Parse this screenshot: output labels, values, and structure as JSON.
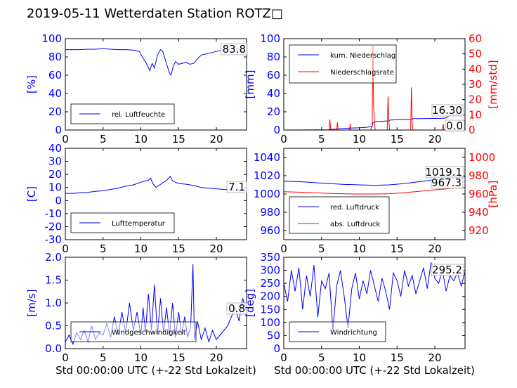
{
  "title": "2019-05-11 Wetterdaten Station ROTZ□",
  "colors": {
    "primary": "#0000ff",
    "secondary": "#ff0000",
    "text": "#000000"
  },
  "chart_data": [
    {
      "id": "humidity",
      "type": "line",
      "ylabel": "[%]",
      "xlim": [
        0,
        24
      ],
      "ylim": [
        0,
        100
      ],
      "xticks": [
        0,
        5,
        10,
        15,
        20
      ],
      "yticks": [
        0,
        20,
        40,
        60,
        80,
        100
      ],
      "current_label": "83.8",
      "legend": "top-left-lower",
      "series": [
        {
          "name": "rel. Luftfeuchte",
          "color": "#0000ff",
          "x": [
            0,
            1,
            2,
            3,
            4,
            5,
            6,
            7,
            8,
            9,
            9.8,
            10.2,
            10.6,
            10.9,
            11.2,
            11.5,
            11.8,
            12.2,
            12.6,
            12.9,
            13.2,
            13.5,
            13.8,
            14.0,
            14.3,
            14.6,
            15,
            15.5,
            16,
            16.5,
            17,
            17.5,
            18,
            19,
            20,
            21,
            22,
            23,
            24
          ],
          "y": [
            88,
            88,
            88,
            88.5,
            88.5,
            89,
            88.5,
            88,
            88,
            87.5,
            86,
            80,
            75,
            70,
            65,
            73,
            68,
            82,
            88,
            86,
            78,
            70,
            62,
            60,
            70,
            75,
            72,
            73,
            74,
            72,
            73,
            78,
            82,
            84,
            86,
            88,
            89,
            88.8,
            83.8
          ]
        }
      ]
    },
    {
      "id": "precipitation",
      "type": "line",
      "ylabel": "[mm]",
      "ylabel_right": "[mm/std]",
      "xlim": [
        0,
        24
      ],
      "ylim": [
        0,
        100
      ],
      "ylim_right": [
        0,
        60
      ],
      "xticks": [
        0,
        5,
        10,
        15,
        20
      ],
      "yticks": [
        0,
        20,
        40,
        60,
        80,
        100
      ],
      "yticks_right": [
        0,
        10,
        20,
        30,
        40,
        50,
        60
      ],
      "current_labels": [
        "16.30",
        "0.0"
      ],
      "legend": "top-left",
      "series": [
        {
          "name": "kum. Niederschlag",
          "color": "#0000ff",
          "axis": "left",
          "x": [
            0,
            6,
            7,
            8,
            9,
            10,
            11,
            11.7,
            11.8,
            12.1,
            13,
            13.9,
            14.1,
            15,
            16,
            16.9,
            17.1,
            18,
            19,
            20,
            21,
            21.5,
            22,
            24
          ],
          "y": [
            0,
            0.3,
            1.2,
            1.8,
            2.2,
            2.5,
            3,
            4,
            8,
            9.2,
            9.6,
            10,
            11,
            11.2,
            11.4,
            11.5,
            12.4,
            12.5,
            12.6,
            12.7,
            12.8,
            13.2,
            16.2,
            16.3
          ]
        },
        {
          "name": "Niederschlagsrate",
          "color": "#ff0000",
          "axis": "right",
          "x": [
            0,
            6,
            6.1,
            6.2,
            6.3,
            7,
            7.1,
            7.2,
            8,
            8.7,
            8.8,
            8.9,
            11.5,
            11.7,
            11.8,
            11.9,
            12.1,
            13.7,
            13.8,
            13.9,
            14,
            16.8,
            16.9,
            17,
            17.1,
            20.5,
            21,
            21.1,
            21.2,
            22,
            24
          ],
          "y": [
            0,
            0,
            7,
            1,
            0,
            0,
            5,
            0,
            0,
            0,
            4,
            0,
            0,
            3,
            55,
            15,
            0,
            0,
            22,
            8,
            0,
            0,
            28,
            5,
            0,
            0,
            0,
            4,
            0,
            0,
            0
          ]
        }
      ]
    },
    {
      "id": "temperature",
      "type": "line",
      "ylabel": "[C]",
      "xlim": [
        0,
        24
      ],
      "ylim": [
        -30,
        40
      ],
      "xticks": [
        0,
        5,
        10,
        15,
        20
      ],
      "yticks": [
        -30,
        -20,
        -10,
        0,
        10,
        20,
        30,
        40
      ],
      "current_label": "7.1",
      "legend": "bottom-left",
      "series": [
        {
          "name": "Lufttemperatur",
          "color": "#0000ff",
          "x": [
            0,
            1,
            2,
            3,
            4,
            5,
            6,
            7,
            8,
            9,
            10,
            10.5,
            11,
            11.3,
            11.6,
            12,
            12.5,
            13,
            13.5,
            13.9,
            14.2,
            14.6,
            15,
            16,
            17,
            18,
            19,
            20,
            21,
            22,
            23,
            24
          ],
          "y": [
            5.5,
            5.5,
            6,
            6.3,
            7,
            7.5,
            8.5,
            9.5,
            11,
            12,
            14,
            15,
            15.5,
            17,
            13,
            10,
            12,
            14,
            16,
            18.5,
            15,
            14,
            13,
            12.5,
            11.5,
            10,
            9.5,
            9,
            8.5,
            8.2,
            7.8,
            7.1
          ]
        }
      ]
    },
    {
      "id": "pressure",
      "type": "line",
      "ylabel_right": "[hPa]",
      "xlim": [
        0,
        24
      ],
      "ylim": [
        950,
        1050
      ],
      "ylim_right": [
        910,
        1010
      ],
      "xticks": [
        0,
        5,
        10,
        15,
        20
      ],
      "yticks": [
        960,
        980,
        1000,
        1020,
        1040
      ],
      "yticks_right": [
        920,
        940,
        960,
        980,
        1000
      ],
      "current_labels": [
        "1019.1",
        "967.3"
      ],
      "legend": "bottom-left",
      "series": [
        {
          "name": "red. Luftdruck",
          "color": "#0000ff",
          "axis": "left",
          "x": [
            0,
            2,
            4,
            6,
            8,
            10,
            12,
            14,
            16,
            18,
            20,
            22,
            24
          ],
          "y": [
            1014,
            1013.5,
            1012.5,
            1011.5,
            1010.5,
            1010,
            1009.5,
            1010,
            1011.5,
            1013.5,
            1015.5,
            1017.5,
            1019.1
          ]
        },
        {
          "name": "abs. Luftdruck",
          "color": "#ff0000",
          "axis": "right",
          "x": [
            0,
            2,
            4,
            6,
            8,
            10,
            12,
            14,
            16,
            18,
            20,
            22,
            24
          ],
          "y": [
            962.5,
            962,
            961.3,
            960.7,
            960.2,
            960,
            960,
            960.3,
            961.5,
            963,
            964.5,
            966,
            967.3
          ]
        }
      ]
    },
    {
      "id": "windspeed",
      "type": "line",
      "ylabel": "[m/s]",
      "xlim": [
        0,
        24
      ],
      "ylim": [
        0,
        2.0
      ],
      "xticks": [
        0,
        5,
        10,
        15,
        20
      ],
      "yticks": [
        0.0,
        0.5,
        1.0,
        1.5,
        2.0
      ],
      "current_label": "0.8",
      "legend": "bottom-left",
      "series": [
        {
          "name": "Windgeschwindigkeit",
          "color": "#0000ff",
          "x": [
            0,
            0.5,
            1,
            1.5,
            2,
            2.5,
            3,
            3.5,
            4,
            4.5,
            5,
            5.5,
            6,
            6.5,
            7,
            7.5,
            8,
            8.5,
            9,
            9.5,
            10,
            10.3,
            10.6,
            11,
            11.4,
            11.8,
            12.2,
            12.6,
            13,
            13.4,
            13.8,
            14.2,
            14.6,
            15,
            15.4,
            15.8,
            16.2,
            16.6,
            16.9,
            17.1,
            17.5,
            18,
            18.5,
            19,
            19.5,
            20,
            20.5,
            21,
            21.5,
            22,
            22.5,
            23,
            23.5,
            24
          ],
          "y": [
            0.15,
            0.3,
            0.1,
            0.35,
            0.2,
            0.4,
            0.15,
            0.5,
            0.2,
            0.35,
            0.3,
            0.55,
            0.25,
            0.7,
            0.3,
            0.8,
            0.35,
            1.0,
            0.4,
            0.8,
            0.3,
            0.9,
            0.35,
            1.2,
            0.4,
            1.4,
            0.3,
            1.1,
            0.35,
            0.9,
            0.3,
            1.0,
            0.25,
            0.8,
            0.3,
            0.7,
            0.25,
            0.5,
            1.85,
            0.2,
            0.6,
            0.2,
            0.45,
            0.15,
            0.4,
            0.2,
            0.3,
            0.4,
            0.5,
            0.7,
            0.9,
            0.6,
            1.1,
            0.8
          ]
        }
      ]
    },
    {
      "id": "winddirection",
      "type": "line",
      "ylabel": "[deg]",
      "xlim": [
        0,
        24
      ],
      "ylim": [
        0,
        350
      ],
      "xticks": [
        0,
        5,
        10,
        15,
        20
      ],
      "yticks": [
        0,
        50,
        100,
        150,
        200,
        250,
        300,
        350
      ],
      "current_label": "295.2",
      "legend": "bottom-left",
      "series": [
        {
          "name": "Windrichtung",
          "color": "#0000ff",
          "x": [
            0,
            0.5,
            1,
            1.5,
            2,
            2.5,
            3,
            3.5,
            4,
            4.5,
            5,
            5.5,
            6,
            6.5,
            7,
            7.5,
            8,
            8.5,
            9,
            9.5,
            10,
            10.5,
            11,
            11.5,
            12,
            12.5,
            13,
            13.5,
            14,
            14.5,
            15,
            15.5,
            16,
            16.5,
            17,
            17.5,
            18,
            18.5,
            19,
            19.5,
            20,
            20.5,
            21,
            21.5,
            22,
            22.5,
            23,
            23.5,
            24
          ],
          "y": [
            250,
            180,
            300,
            220,
            310,
            150,
            280,
            200,
            320,
            120,
            260,
            230,
            290,
            70,
            240,
            300,
            200,
            80,
            230,
            290,
            190,
            260,
            210,
            300,
            240,
            180,
            270,
            220,
            150,
            290,
            260,
            200,
            300,
            240,
            280,
            210,
            260,
            310,
            230,
            330,
            270,
            250,
            300,
            220,
            280,
            260,
            290,
            240,
            295.2
          ]
        }
      ]
    }
  ],
  "x_axis_label": "Std 00:00:00 UTC (+-22 Std Lokalzeit)"
}
